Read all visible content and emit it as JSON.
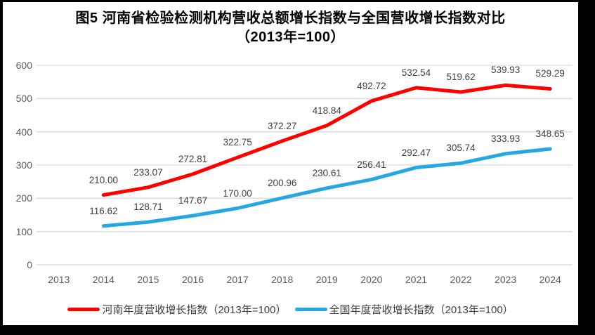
{
  "title": {
    "line1": "图5  河南省检验检测机构营收总额增长指数与全国营收增长指数对比",
    "line2": "（2013年=100）"
  },
  "colors": {
    "henan_line": "#FF0000",
    "national_line": "#26A7E2",
    "gridline": "#D9D9D9",
    "axis_text": "#5A5A5A",
    "data_label_text": "#3F3F3F",
    "frame_border": "#000000"
  },
  "chart_data": {
    "type": "line",
    "title": "图5 河南省检验检测机构营收总额增长指数与全国营收增长指数对比（2013年=100）",
    "categories": [
      "2013",
      "2014",
      "2015",
      "2016",
      "2017",
      "2018",
      "2019",
      "2020",
      "2021",
      "2022",
      "2023",
      "2024"
    ],
    "series": [
      {
        "name": "河南年度营收增长指数（2013年=100）",
        "color": "#FF0000",
        "values": [
          null,
          210.0,
          233.07,
          272.81,
          322.75,
          372.27,
          418.84,
          492.72,
          532.54,
          519.62,
          539.93,
          529.29
        ]
      },
      {
        "name": "全国年度营收增长指数（2013年=100）",
        "color": "#26A7E2",
        "values": [
          null,
          116.62,
          128.71,
          147.67,
          170.0,
          200.96,
          230.61,
          256.41,
          292.47,
          305.74,
          333.93,
          348.65
        ]
      }
    ],
    "xlabel": "",
    "ylabel": "",
    "ylim": [
      0,
      600
    ],
    "ytick_step": 100,
    "grid": true,
    "legend_position": "bottom",
    "data_labels": true,
    "data_label_decimals": 2
  }
}
